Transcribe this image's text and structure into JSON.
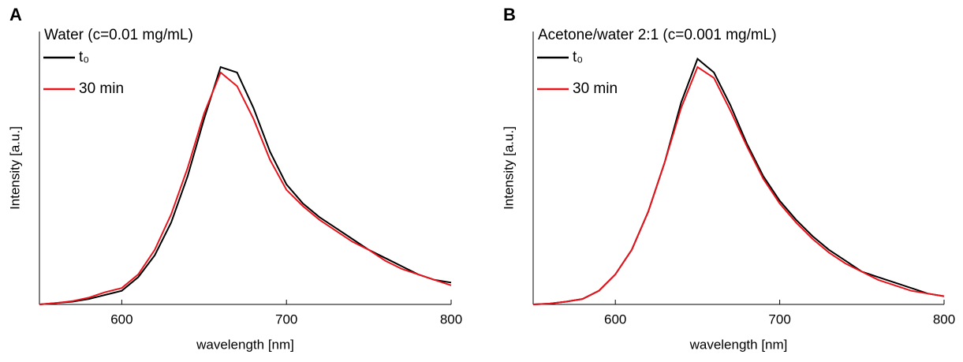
{
  "chart_data": [
    {
      "type": "line",
      "panel": "A",
      "title": "Water (c=0.01 mg/mL)",
      "x_label": "wavelength [nm]",
      "y_label": "Intensity [a.u.]",
      "xlim": [
        550,
        800
      ],
      "xticks": [
        600,
        700,
        800
      ],
      "ylim": [
        0,
        1
      ],
      "x": [
        550,
        560,
        570,
        580,
        590,
        600,
        610,
        620,
        630,
        640,
        650,
        660,
        670,
        680,
        690,
        700,
        710,
        720,
        730,
        740,
        750,
        760,
        770,
        780,
        790,
        800
      ],
      "series": [
        {
          "name": "t₀",
          "color": "#000000",
          "values": [
            0,
            0.005,
            0.01,
            0.02,
            0.035,
            0.05,
            0.1,
            0.18,
            0.3,
            0.47,
            0.68,
            0.87,
            0.85,
            0.72,
            0.56,
            0.44,
            0.37,
            0.32,
            0.28,
            0.24,
            0.2,
            0.17,
            0.14,
            0.11,
            0.09,
            0.08
          ]
        },
        {
          "name": "30 min",
          "color": "#e8141c",
          "values": [
            0,
            0.005,
            0.012,
            0.025,
            0.045,
            0.06,
            0.11,
            0.2,
            0.33,
            0.5,
            0.7,
            0.85,
            0.8,
            0.68,
            0.53,
            0.42,
            0.36,
            0.31,
            0.27,
            0.23,
            0.2,
            0.16,
            0.13,
            0.11,
            0.09,
            0.07
          ]
        }
      ]
    },
    {
      "type": "line",
      "panel": "B",
      "title": "Acetone/water 2:1 (c=0.001 mg/mL)",
      "x_label": "wavelength [nm]",
      "y_label": "Intensity [a.u.]",
      "xlim": [
        550,
        800
      ],
      "xticks": [
        600,
        700,
        800
      ],
      "ylim": [
        0,
        1
      ],
      "x": [
        550,
        560,
        570,
        580,
        590,
        600,
        610,
        620,
        630,
        640,
        650,
        660,
        670,
        680,
        690,
        700,
        710,
        720,
        730,
        740,
        750,
        760,
        770,
        780,
        790,
        800
      ],
      "series": [
        {
          "name": "t₀",
          "color": "#000000",
          "values": [
            0,
            0.003,
            0.01,
            0.02,
            0.05,
            0.11,
            0.2,
            0.34,
            0.52,
            0.74,
            0.9,
            0.85,
            0.73,
            0.59,
            0.47,
            0.38,
            0.31,
            0.25,
            0.2,
            0.16,
            0.12,
            0.1,
            0.08,
            0.06,
            0.04,
            0.03
          ]
        },
        {
          "name": "30 min",
          "color": "#e8141c",
          "values": [
            0,
            0.003,
            0.01,
            0.02,
            0.05,
            0.11,
            0.2,
            0.34,
            0.52,
            0.72,
            0.87,
            0.83,
            0.71,
            0.58,
            0.46,
            0.37,
            0.3,
            0.24,
            0.19,
            0.15,
            0.12,
            0.09,
            0.07,
            0.05,
            0.04,
            0.03
          ]
        }
      ]
    }
  ]
}
